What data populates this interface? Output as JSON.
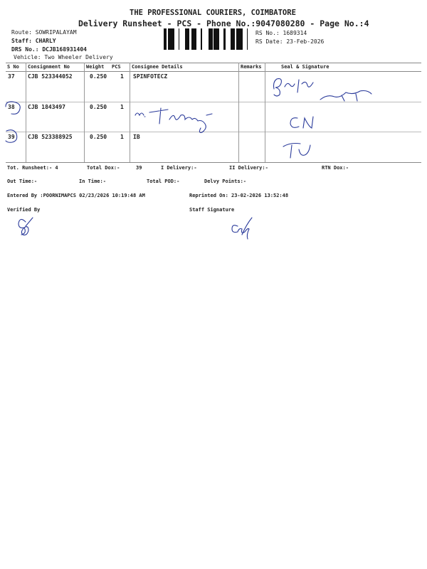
{
  "header": {
    "company": "THE PROFESSIONAL COURIERS, COIMBATORE",
    "subtitle": "Delivery Runsheet - PCS - Phone No.:9047080280 - Page No.:4",
    "route": "Route: SOWRIPALAYAM",
    "staff": "Staff: CHARLY",
    "drs_no": "DRS No.: DCJB168931404",
    "vehicle": "Vehicle: Two Wheeler Delivery",
    "rs_no": "RS No.: 1689314",
    "rs_date": "RS Date: 23-Feb-2026"
  },
  "table": {
    "columns": [
      "S No",
      "Consignment No",
      "Weight",
      "PCS",
      "Consignee Details",
      "Remarks",
      "Seal & Signature"
    ],
    "rows": [
      {
        "sno": "37",
        "consignment": "CJB 523344052",
        "weight": "0.250",
        "pcs": "1",
        "consignee": "SPINFOTECZ",
        "remarks": ""
      },
      {
        "sno": "38",
        "consignment": "CJB 1843497",
        "weight": "0.250",
        "pcs": "1",
        "consignee": "",
        "remarks": ""
      },
      {
        "sno": "39",
        "consignment": "CJB 523388925",
        "weight": "0.250",
        "pcs": "1",
        "consignee": "IB",
        "remarks": ""
      }
    ]
  },
  "summary": {
    "tot_runsheet": "Tot. Runsheet:- 4",
    "total_dox_label": "Total Dox:-",
    "total_dox": "39",
    "i_delivery": "I Delivery:-",
    "ii_delivery": "II Delivery:-",
    "rtn_dox": "RTN Dox:-",
    "out_time": "Out Time:-",
    "in_time": "In Time:-",
    "total_pod": "Total POD:-",
    "delvy_points": "Delvy Points:-",
    "entered_by": "Entered By :POORNIMAPCS 02/23/2026 10:19:48 AM",
    "reprinted_on": "Reprinted On: 23-02-2026 13:52:48",
    "verified_by": "Verified By",
    "staff_signature": "Staff Signature"
  }
}
